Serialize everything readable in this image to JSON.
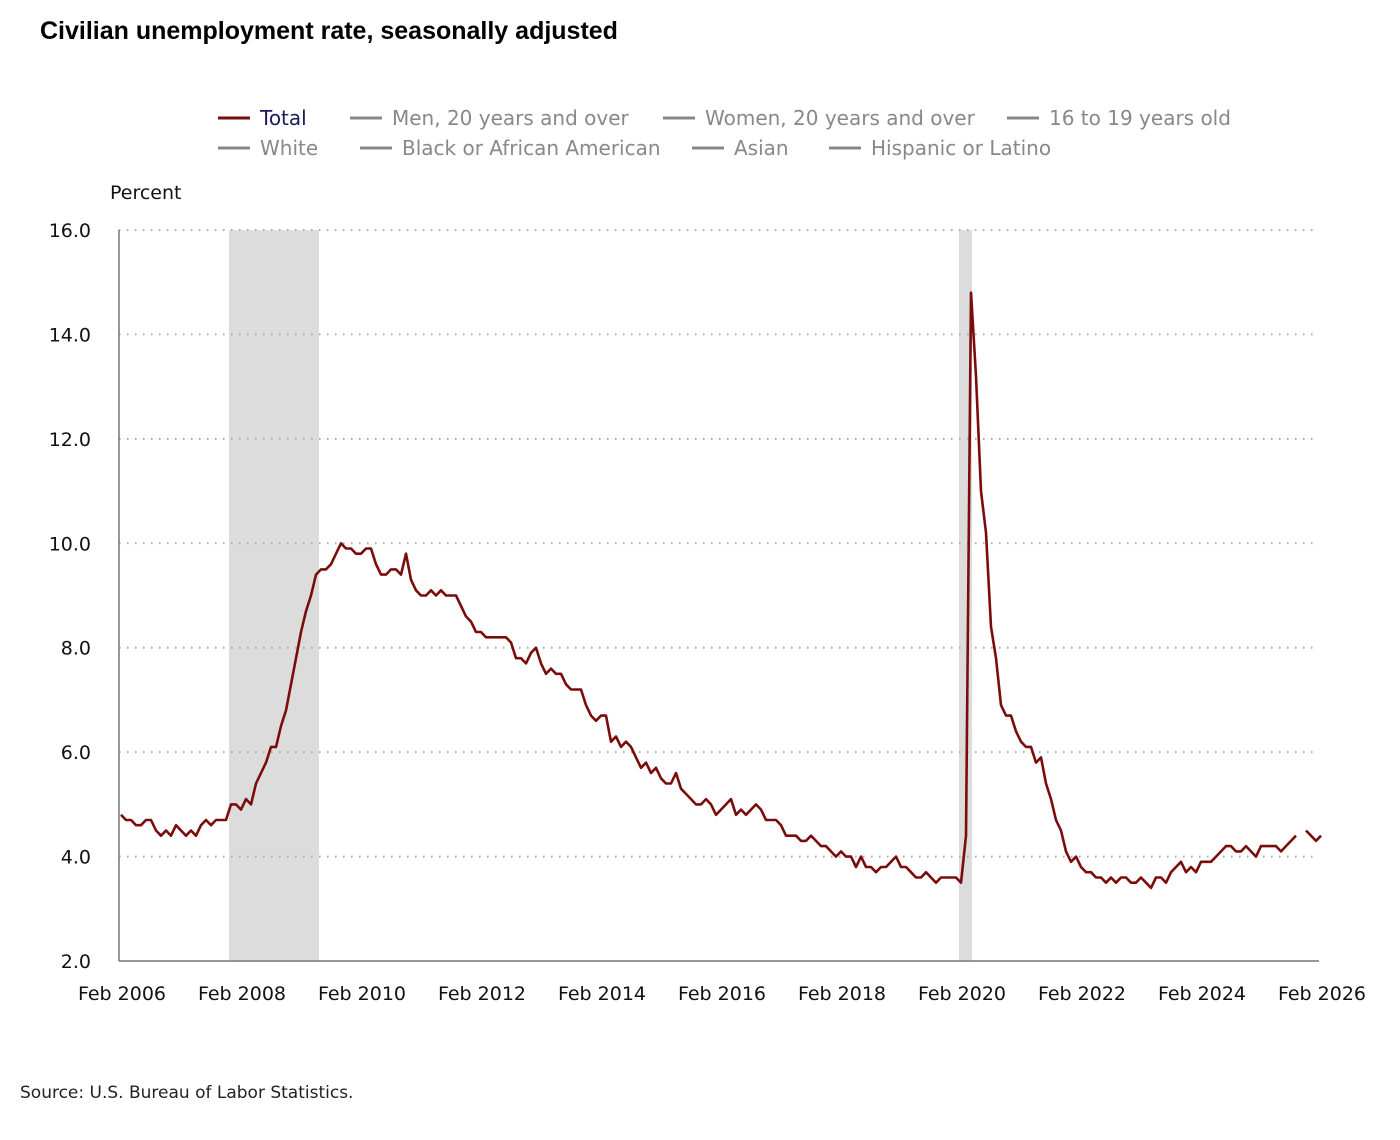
{
  "chart_data": {
    "type": "line",
    "title": "Civilian unemployment rate, seasonally adjusted",
    "ylabel": "Percent",
    "xlabel": "",
    "ylim": [
      2.0,
      16.0
    ],
    "yticks": [
      "2.0",
      "4.0",
      "6.0",
      "8.0",
      "10.0",
      "12.0",
      "14.0",
      "16.0"
    ],
    "xlim": [
      "2006-02",
      "2026-02"
    ],
    "xticks": [
      "Feb 2006",
      "Feb 2008",
      "Feb 2010",
      "Feb 2012",
      "Feb 2014",
      "Feb 2016",
      "Feb 2018",
      "Feb 2020",
      "Feb 2022",
      "Feb 2024",
      "Feb 2026"
    ],
    "grid": "horizontal dotted",
    "legend_position": "top",
    "legend": [
      {
        "label": "Total",
        "active": true
      },
      {
        "label": "Men, 20 years and over",
        "active": false
      },
      {
        "label": "Women, 20 years and over",
        "active": false
      },
      {
        "label": "16 to 19 years old",
        "active": false
      },
      {
        "label": "White",
        "active": false
      },
      {
        "label": "Black or African American",
        "active": false
      },
      {
        "label": "Asian",
        "active": false
      },
      {
        "label": "Hispanic or Latino",
        "active": false
      }
    ],
    "recessions": [
      [
        "2007-12",
        "2009-06"
      ],
      [
        "2020-02",
        "2020-04"
      ]
    ],
    "colors": {
      "total": "#7b0c0c",
      "inactive": "#888888",
      "recession": "#dcdcdc",
      "legend_active_text": "#1a1a5e"
    },
    "series": [
      {
        "name": "Total",
        "start": "2006-02",
        "values": [
          4.8,
          4.7,
          4.7,
          4.6,
          4.6,
          4.7,
          4.7,
          4.5,
          4.4,
          4.5,
          4.4,
          4.6,
          4.5,
          4.4,
          4.5,
          4.4,
          4.6,
          4.7,
          4.6,
          4.7,
          4.7,
          4.7,
          5.0,
          5.0,
          4.9,
          5.1,
          5.0,
          5.4,
          5.6,
          5.8,
          6.1,
          6.1,
          6.5,
          6.8,
          7.3,
          7.8,
          8.3,
          8.7,
          9.0,
          9.4,
          9.5,
          9.5,
          9.6,
          9.8,
          10.0,
          9.9,
          9.9,
          9.8,
          9.8,
          9.9,
          9.9,
          9.6,
          9.4,
          9.4,
          9.5,
          9.5,
          9.4,
          9.8,
          9.3,
          9.1,
          9.0,
          9.0,
          9.1,
          9.0,
          9.1,
          9.0,
          9.0,
          9.0,
          8.8,
          8.6,
          8.5,
          8.3,
          8.3,
          8.2,
          8.2,
          8.2,
          8.2,
          8.2,
          8.1,
          7.8,
          7.8,
          7.7,
          7.9,
          8.0,
          7.7,
          7.5,
          7.6,
          7.5,
          7.5,
          7.3,
          7.2,
          7.2,
          7.2,
          6.9,
          6.7,
          6.6,
          6.7,
          6.7,
          6.2,
          6.3,
          6.1,
          6.2,
          6.1,
          5.9,
          5.7,
          5.8,
          5.6,
          5.7,
          5.5,
          5.4,
          5.4,
          5.6,
          5.3,
          5.2,
          5.1,
          5.0,
          5.0,
          5.1,
          5.0,
          4.8,
          4.9,
          5.0,
          5.1,
          4.8,
          4.9,
          4.8,
          4.9,
          5.0,
          4.9,
          4.7,
          4.7,
          4.7,
          4.6,
          4.4,
          4.4,
          4.4,
          4.3,
          4.3,
          4.4,
          4.3,
          4.2,
          4.2,
          4.1,
          4.0,
          4.1,
          4.0,
          4.0,
          3.8,
          4.0,
          3.8,
          3.8,
          3.7,
          3.8,
          3.8,
          3.9,
          4.0,
          3.8,
          3.8,
          3.7,
          3.6,
          3.6,
          3.7,
          3.6,
          3.5,
          3.6,
          3.6,
          3.6,
          3.6,
          3.5,
          4.4,
          14.8,
          13.2,
          11.0,
          10.2,
          8.4,
          7.8,
          6.9,
          6.7,
          6.7,
          6.4,
          6.2,
          6.1,
          6.1,
          5.8,
          5.9,
          5.4,
          5.1,
          4.7,
          4.5,
          4.1,
          3.9,
          4.0,
          3.8,
          3.7,
          3.7,
          3.6,
          3.6,
          3.5,
          3.6,
          3.5,
          3.6,
          3.6,
          3.5,
          3.5,
          3.6,
          3.5,
          3.4,
          3.6,
          3.6,
          3.5,
          3.7,
          3.8,
          3.9,
          3.7,
          3.8,
          3.7,
          3.9,
          3.9,
          3.9,
          4.0,
          4.1,
          4.2,
          4.2,
          4.1,
          4.1,
          4.2,
          4.1,
          4.0,
          4.2,
          4.2,
          4.2,
          4.2,
          4.1,
          4.2,
          4.3,
          4.4,
          null,
          4.5,
          4.4,
          4.3,
          4.4
        ]
      }
    ]
  },
  "source": "Source: U.S. Bureau of Labor Statistics."
}
